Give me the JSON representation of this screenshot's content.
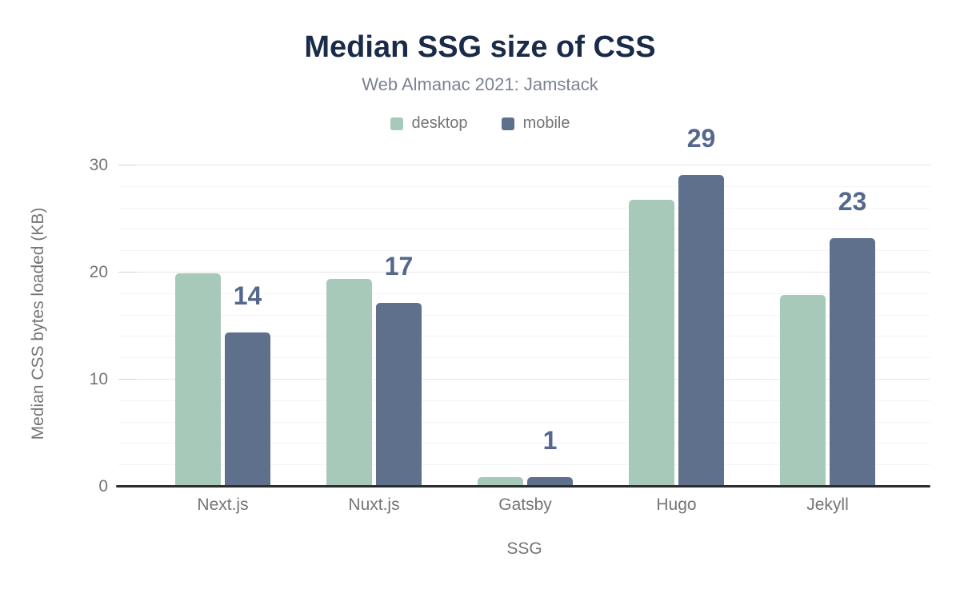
{
  "chart_data": {
    "type": "bar",
    "title": "Median SSG size of CSS",
    "subtitle": "Web Almanac 2021: Jamstack",
    "xlabel": "SSG",
    "ylabel": "Median CSS bytes loaded (KB)",
    "categories": [
      "Next.js",
      "Nuxt.js",
      "Gatsby",
      "Hugo",
      "Jekyll"
    ],
    "series": [
      {
        "name": "desktop",
        "color": "#a7c9ba",
        "values": [
          19.9,
          19.4,
          0.9,
          26.8,
          17.9
        ]
      },
      {
        "name": "mobile",
        "color": "#5f708d",
        "values": [
          14.4,
          17.2,
          0.9,
          29.1,
          23.2
        ]
      }
    ],
    "data_labels": {
      "on_series": "mobile",
      "values": [
        "14",
        "17",
        "1",
        "29",
        "23"
      ]
    },
    "y_axis": {
      "ticks": [
        0,
        10,
        20,
        30
      ],
      "minor_step": 2,
      "ylim": [
        0,
        30
      ]
    },
    "legend_position": "top",
    "grid": true,
    "colors": {
      "background": "#ffffff",
      "title": "#1a2b49",
      "subtitle": "#7b8292",
      "axis_text": "#757575",
      "axis_line": "#2d2d2d",
      "major_grid": "#e6e7e9",
      "minor_grid": "#f3f4f5",
      "tick": "#d2d4d6",
      "data_label": "#54688e"
    }
  }
}
